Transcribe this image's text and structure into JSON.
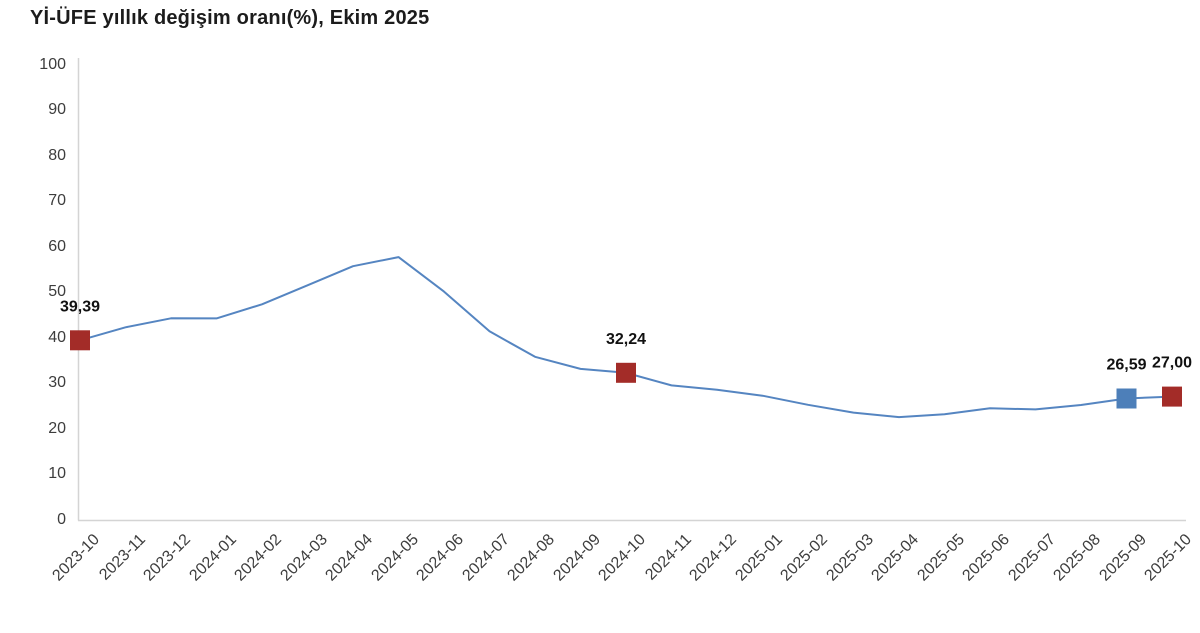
{
  "title": "Yİ-ÜFE yıllık değişim oranı(%), Ekim 2025",
  "colors": {
    "line": "#5585c1",
    "marker_red": "#a32c28",
    "marker_blue": "#4d7fb9",
    "axis": "#d4d4d4",
    "tick_text": "#3d3d3d",
    "title_text": "#1c1c1c",
    "label_text": "#111111"
  },
  "chart_data": {
    "type": "line",
    "title": "Yİ-ÜFE yıllık değişim oranı(%), Ekim 2025",
    "xlabel": "",
    "ylabel": "",
    "ylim": [
      0,
      100
    ],
    "ytick_step": 10,
    "grid": false,
    "legend": false,
    "x": [
      "2023-10",
      "2023-11",
      "2023-12",
      "2024-01",
      "2024-02",
      "2024-03",
      "2024-04",
      "2024-05",
      "2024-06",
      "2024-07",
      "2024-08",
      "2024-09",
      "2024-10",
      "2024-11",
      "2024-12",
      "2025-01",
      "2025-02",
      "2025-03",
      "2025-04",
      "2025-05",
      "2025-06",
      "2025-07",
      "2025-08",
      "2025-09",
      "2025-10"
    ],
    "values": [
      39.39,
      42.25,
      44.22,
      44.2,
      47.29,
      51.47,
      55.66,
      57.68,
      50.09,
      41.37,
      35.75,
      33.09,
      32.24,
      29.47,
      28.52,
      27.2,
      25.21,
      23.5,
      22.5,
      23.13,
      24.45,
      24.19,
      25.16,
      26.59,
      27.0
    ],
    "highlights": [
      {
        "x": "2023-10",
        "value": 39.39,
        "label": "39,39",
        "color": "red"
      },
      {
        "x": "2024-10",
        "value": 32.24,
        "label": "32,24",
        "color": "red"
      },
      {
        "x": "2025-09",
        "value": 26.59,
        "label": "26,59",
        "color": "blue"
      },
      {
        "x": "2025-10",
        "value": 27.0,
        "label": "27,00",
        "color": "red"
      }
    ]
  }
}
